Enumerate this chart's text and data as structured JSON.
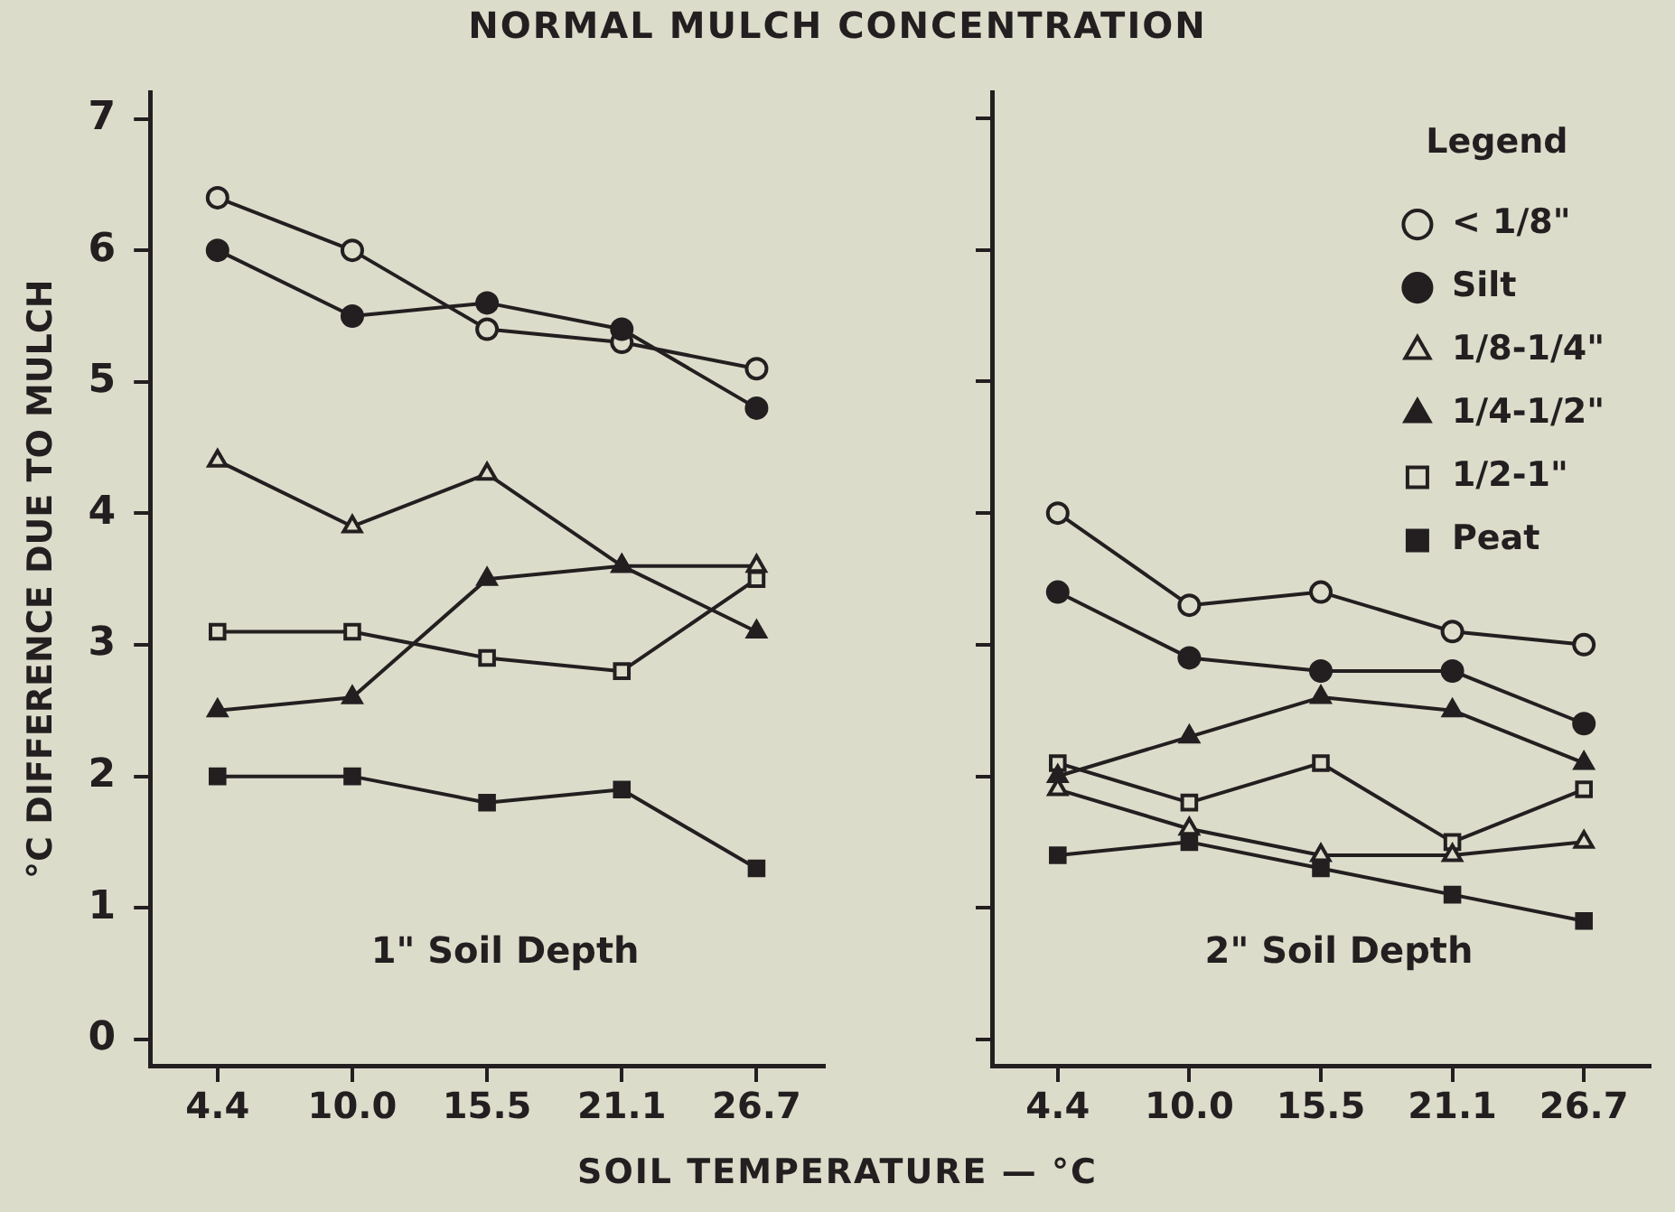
{
  "chart_data": [
    {
      "type": "line",
      "title": "NORMAL MULCH CONCENTRATION",
      "xlabel": "SOIL TEMPERATURE — °C",
      "ylabel": "°C DIFFERENCE DUE TO MULCH",
      "categories": [
        "4.4",
        "10.0",
        "15.5",
        "21.1",
        "26.7"
      ],
      "series": [
        {
          "color": "#231f20",
          "marker": "circle",
          "colors": [
            "#dcdccb",
            "#dcdccb",
            "#dcdccb",
            "#dcdccb",
            "#dcdccb"
          ],
          "values": [
            6.4,
            6.0,
            5.4,
            5.3,
            5.1
          ]
        },
        {
          "color": "#231f20",
          "marker": "circle",
          "values": [
            6.0,
            5.5,
            5.6,
            5.4,
            4.8
          ]
        },
        {
          "color": "#231f20",
          "marker": "triangle",
          "colors": [
            "#dcdccb",
            "#dcdccb",
            "#dcdccb",
            "#dcdccb",
            "#dcdccb"
          ],
          "values": [
            4.4,
            3.9,
            4.3,
            3.6,
            3.6
          ]
        },
        {
          "color": "#231f20",
          "marker": "triangle",
          "values": [
            2.5,
            2.6,
            3.5,
            3.6,
            3.1
          ]
        },
        {
          "color": "#231f20",
          "marker": "square",
          "colors": [
            "#dcdccb",
            "#dcdccb",
            "#dcdccb",
            "#dcdccb",
            "#dcdccb"
          ],
          "values": [
            3.1,
            3.1,
            2.9,
            2.8,
            3.5
          ]
        },
        {
          "color": "#231f20",
          "marker": "square",
          "values": [
            2.0,
            2.0,
            1.8,
            1.9,
            1.3
          ]
        }
      ],
      "ylim": [
        -0.2,
        7.2
      ],
      "yticks": [
        0,
        1,
        2,
        3,
        4,
        5,
        6,
        7
      ],
      "annotations": [
        "1\" Soil Depth"
      ]
    },
    {
      "type": "line",
      "categories": [
        "4.4",
        "10.0",
        "15.5",
        "21.1",
        "26.7"
      ],
      "series": [
        {
          "name": "< 1/8\"",
          "color": "#231f20",
          "marker": "circle",
          "colors": [
            "#dcdccb",
            "#dcdccb",
            "#dcdccb",
            "#dcdccb",
            "#dcdccb"
          ],
          "values": [
            4.0,
            3.3,
            3.4,
            3.1,
            3.0
          ]
        },
        {
          "name": "Silt",
          "color": "#231f20",
          "marker": "circle",
          "values": [
            3.4,
            2.9,
            2.8,
            2.8,
            2.4
          ]
        },
        {
          "name": "1/8-1/4\"",
          "color": "#231f20",
          "marker": "triangle",
          "colors": [
            "#dcdccb",
            "#dcdccb",
            "#dcdccb",
            "#dcdccb",
            "#dcdccb"
          ],
          "values": [
            1.9,
            1.6,
            1.4,
            1.4,
            1.5
          ]
        },
        {
          "name": "1/4-1/2\"",
          "color": "#231f20",
          "marker": "triangle",
          "values": [
            2.0,
            2.3,
            2.6,
            2.5,
            2.1
          ]
        },
        {
          "name": "1/2-1\"",
          "color": "#231f20",
          "marker": "square",
          "colors": [
            "#dcdccb",
            "#dcdccb",
            "#dcdccb",
            "#dcdccb",
            "#dcdccb"
          ],
          "values": [
            2.1,
            1.8,
            2.1,
            1.5,
            1.9
          ]
        },
        {
          "name": "Peat",
          "color": "#231f20",
          "marker": "square",
          "values": [
            1.4,
            1.5,
            1.3,
            1.1,
            0.9
          ]
        }
      ],
      "ylim": [
        -0.2,
        7.2
      ],
      "yticks": [
        0,
        1,
        2,
        3,
        4,
        5,
        6,
        7
      ],
      "tick_labels": "x",
      "legend": "top right",
      "legend_title": "Legend",
      "annotations": [
        "2\" Soil Depth"
      ]
    }
  ]
}
